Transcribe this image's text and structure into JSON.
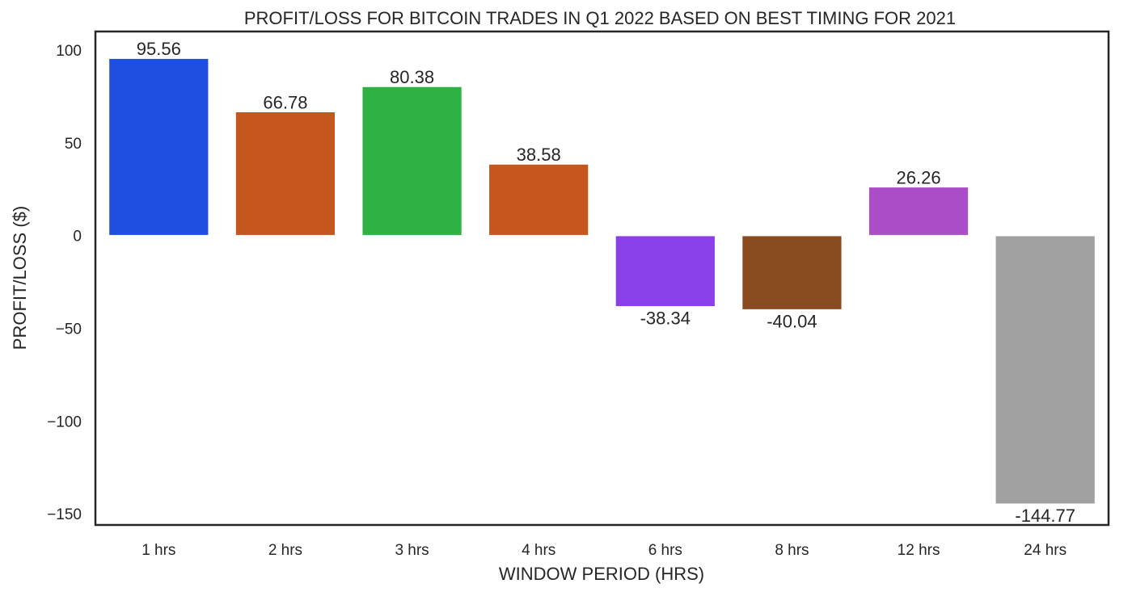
{
  "chart_data": {
    "type": "bar",
    "title": "PROFIT/LOSS FOR BITCOIN TRADES IN Q1 2022 BASED ON BEST TIMING FOR 2021",
    "xlabel": "WINDOW PERIOD (HRS)",
    "ylabel": "PROFIT/LOSS ($)",
    "categories": [
      "1 hrs",
      "2 hrs",
      "3 hrs",
      "4 hrs",
      "6 hrs",
      "8 hrs",
      "12 hrs",
      "24 hrs"
    ],
    "values": [
      95.56,
      66.78,
      80.38,
      38.58,
      -38.34,
      -40.04,
      26.26,
      -144.77
    ],
    "value_labels": [
      "95.56",
      "66.78",
      "80.38",
      "38.58",
      "-38.34",
      "-40.04",
      "26.26",
      "-144.77"
    ],
    "colors": [
      "#1f4fe0",
      "#c4561e",
      "#2db243",
      "#c4561e",
      "#8b3fe6",
      "#8a4a22",
      "#ab4cc9",
      "#a0a0a0"
    ],
    "yticks": [
      100,
      50,
      0,
      -50,
      -100,
      -150
    ],
    "ytick_labels": [
      "100",
      "50",
      "0",
      "−50",
      "−100",
      "−150"
    ],
    "ylim": [
      -156,
      110
    ],
    "grid": false,
    "legend": false
  }
}
